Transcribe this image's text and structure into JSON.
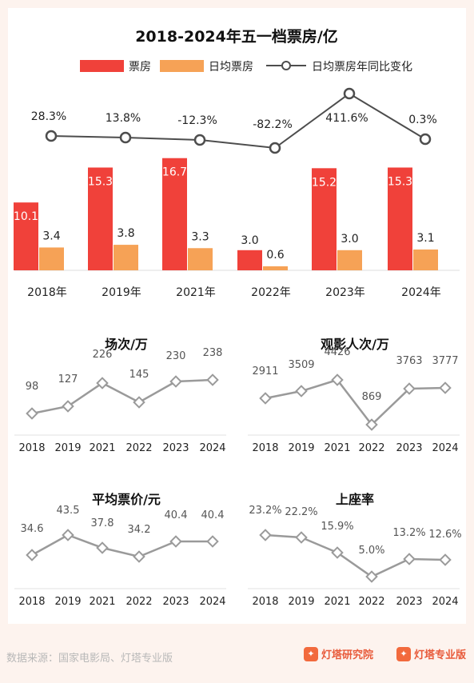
{
  "colors": {
    "box_office": "#f0413a",
    "daily": "#f6a256",
    "line": "#4d4d4d",
    "small_line": "#9a9a9a",
    "marker_fill": "#ffffff"
  },
  "chart_data": [
    {
      "type": "bar",
      "title": "2018-2024年五一档票房/亿",
      "categories": [
        "2018年",
        "2019年",
        "2021年",
        "2022年",
        "2023年",
        "2024年"
      ],
      "series": [
        {
          "name": "票房",
          "values": [
            10.1,
            15.3,
            16.7,
            3.0,
            15.2,
            15.3
          ]
        },
        {
          "name": "日均票房",
          "values": [
            3.4,
            3.8,
            3.3,
            0.6,
            3.0,
            3.1
          ]
        }
      ],
      "line_series": {
        "name": "日均票房年同比变化",
        "values": [
          28.3,
          13.8,
          -12.3,
          -82.2,
          411.6,
          0.3
        ],
        "labels": [
          "28.3%",
          "13.8%",
          "-12.3%",
          "-82.2%",
          "411.6%",
          "0.3%"
        ]
      },
      "legend": "top-center"
    },
    {
      "type": "line",
      "title": "场次/万",
      "x": [
        "2018",
        "2019",
        "2021",
        "2022",
        "2023",
        "2024"
      ],
      "values": [
        98,
        127,
        226,
        145,
        230,
        238
      ]
    },
    {
      "type": "line",
      "title": "观影人次/万",
      "x": [
        "2018",
        "2019",
        "2021",
        "2022",
        "2023",
        "2024"
      ],
      "values": [
        2911,
        3509,
        4426,
        869,
        3763,
        3777
      ]
    },
    {
      "type": "line",
      "title": "平均票价/元",
      "x": [
        "2018",
        "2019",
        "2021",
        "2022",
        "2023",
        "2024"
      ],
      "values": [
        34.6,
        43.5,
        37.8,
        34.2,
        40.4,
        40.4
      ]
    },
    {
      "type": "line",
      "title": "上座率",
      "x": [
        "2018",
        "2019",
        "2021",
        "2022",
        "2023",
        "2024"
      ],
      "values": [
        23.2,
        22.2,
        15.9,
        5.0,
        13.2,
        12.6
      ],
      "labels": [
        "23.2%",
        "22.2%",
        "15.9%",
        "5.0%",
        "13.2%",
        "12.6%"
      ]
    }
  ],
  "footer": {
    "source": "数据来源：国家电影局、灯塔专业版",
    "brand1": "灯塔研究院",
    "brand2": "灯塔专业版"
  }
}
